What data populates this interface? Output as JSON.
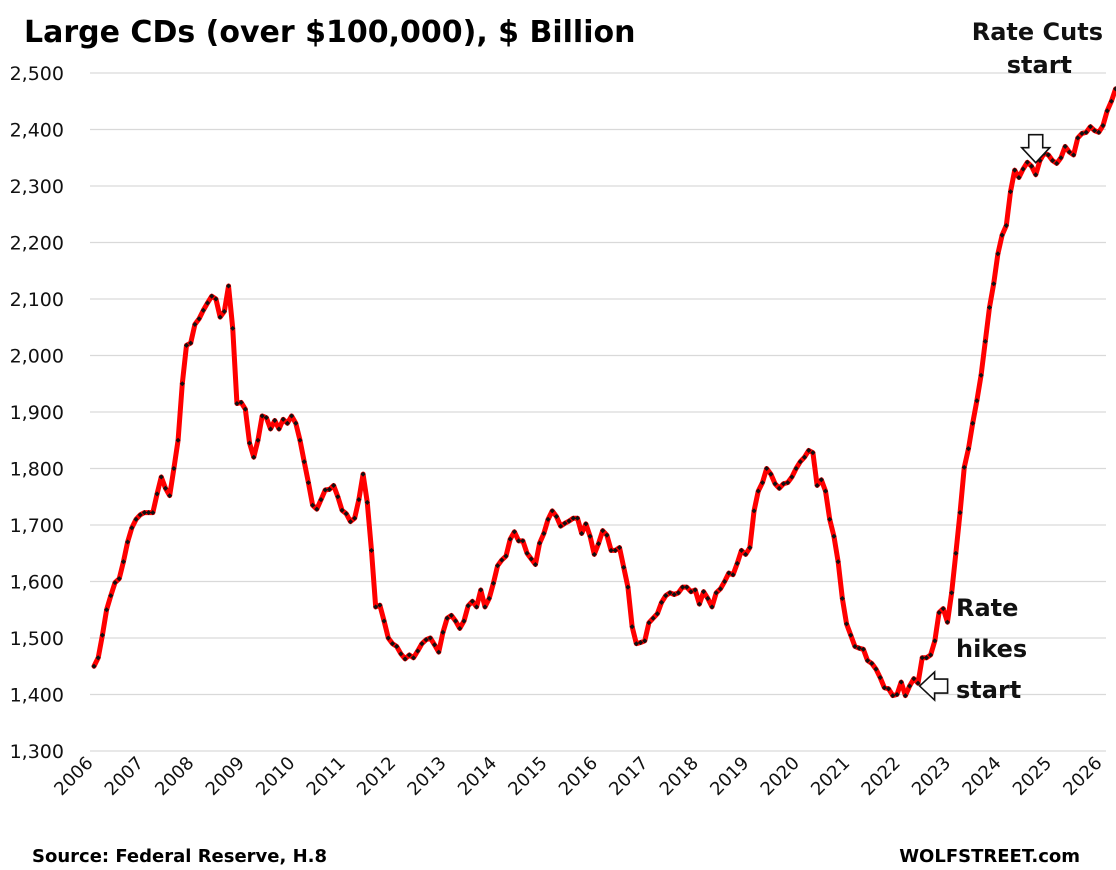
{
  "chart_data": {
    "type": "line",
    "title": "Large CDs (over $100,000), $ Billion",
    "xlabel": "",
    "ylabel": "",
    "ylim": [
      1300,
      2500
    ],
    "y_ticks": [
      "2,500",
      "2,400",
      "2,300",
      "2,200",
      "2,100",
      "2,000",
      "1,900",
      "1,800",
      "1,700",
      "1,600",
      "1,500",
      "1,400",
      "1,300"
    ],
    "y_tick_values": [
      2500,
      2400,
      2300,
      2200,
      2100,
      2000,
      1900,
      1800,
      1700,
      1600,
      1500,
      1400,
      1300
    ],
    "x_ticks": [
      "2006",
      "2007",
      "2008",
      "2009",
      "2010",
      "2011",
      "2012",
      "2013",
      "2014",
      "2015",
      "2016",
      "2017",
      "2018",
      "2019",
      "2020",
      "2021",
      "2022",
      "2023",
      "2024",
      "2025",
      "2026"
    ],
    "xlim_years": [
      2006,
      2026
    ],
    "grid": true,
    "legend": "none",
    "series": [
      {
        "name": "Large CDs",
        "color": "#ff0000",
        "marker_color": "#111111",
        "start": "2006-01",
        "frequency": "monthly",
        "values": [
          1450,
          1465,
          1505,
          1550,
          1575,
          1598,
          1605,
          1635,
          1670,
          1695,
          1710,
          1718,
          1722,
          1722,
          1722,
          1755,
          1785,
          1765,
          1752,
          1800,
          1850,
          1950,
          2018,
          2022,
          2055,
          2065,
          2080,
          2093,
          2105,
          2100,
          2068,
          2078,
          2123,
          2048,
          1915,
          1917,
          1905,
          1845,
          1820,
          1850,
          1893,
          1890,
          1870,
          1885,
          1870,
          1887,
          1880,
          1893,
          1880,
          1850,
          1812,
          1775,
          1735,
          1728,
          1745,
          1762,
          1763,
          1770,
          1750,
          1726,
          1720,
          1706,
          1712,
          1745,
          1790,
          1740,
          1655,
          1555,
          1558,
          1530,
          1500,
          1490,
          1485,
          1472,
          1463,
          1470,
          1465,
          1477,
          1490,
          1497,
          1500,
          1488,
          1475,
          1510,
          1535,
          1540,
          1530,
          1517,
          1530,
          1557,
          1565,
          1555,
          1585,
          1555,
          1570,
          1597,
          1628,
          1638,
          1645,
          1675,
          1688,
          1672,
          1672,
          1650,
          1640,
          1630,
          1668,
          1685,
          1710,
          1725,
          1715,
          1698,
          1703,
          1707,
          1712,
          1712,
          1685,
          1702,
          1680,
          1648,
          1667,
          1690,
          1682,
          1655,
          1655,
          1660,
          1625,
          1590,
          1520,
          1490,
          1492,
          1495,
          1527,
          1535,
          1543,
          1563,
          1575,
          1580,
          1577,
          1580,
          1590,
          1590,
          1582,
          1585,
          1560,
          1582,
          1570,
          1555,
          1580,
          1587,
          1600,
          1615,
          1612,
          1632,
          1655,
          1648,
          1660,
          1725,
          1760,
          1775,
          1800,
          1790,
          1773,
          1765,
          1773,
          1775,
          1785,
          1800,
          1812,
          1820,
          1832,
          1828,
          1770,
          1780,
          1760,
          1710,
          1680,
          1635,
          1570,
          1525,
          1505,
          1485,
          1482,
          1480,
          1460,
          1455,
          1445,
          1430,
          1412,
          1410,
          1398,
          1400,
          1422,
          1398,
          1415,
          1428,
          1420,
          1465,
          1465,
          1470,
          1495,
          1545,
          1552,
          1528,
          1580,
          1650,
          1722,
          1802,
          1835,
          1880,
          1920,
          1965,
          2025,
          2085,
          2127,
          2180,
          2213,
          2230,
          2290,
          2328,
          2315,
          2330,
          2342,
          2335,
          2320,
          2345,
          2358,
          2355,
          2345,
          2340,
          2350,
          2370,
          2360,
          2355,
          2385,
          2393,
          2395,
          2405,
          2398,
          2395,
          2407,
          2433,
          2450,
          2472
        ]
      }
    ],
    "annotations": [
      {
        "id": "rate-cuts",
        "lines": [
          "Rate Cuts",
          "start"
        ],
        "arrow": "down",
        "points_to": "2024-09"
      },
      {
        "id": "rate-hikes",
        "lines": [
          "Rate",
          "hikes",
          "start"
        ],
        "arrow": "left",
        "points_to": "2022-03"
      }
    ]
  },
  "footer": {
    "source": "Source: Federal Reserve, H.8",
    "brand": "WOLFSTREET.com"
  }
}
